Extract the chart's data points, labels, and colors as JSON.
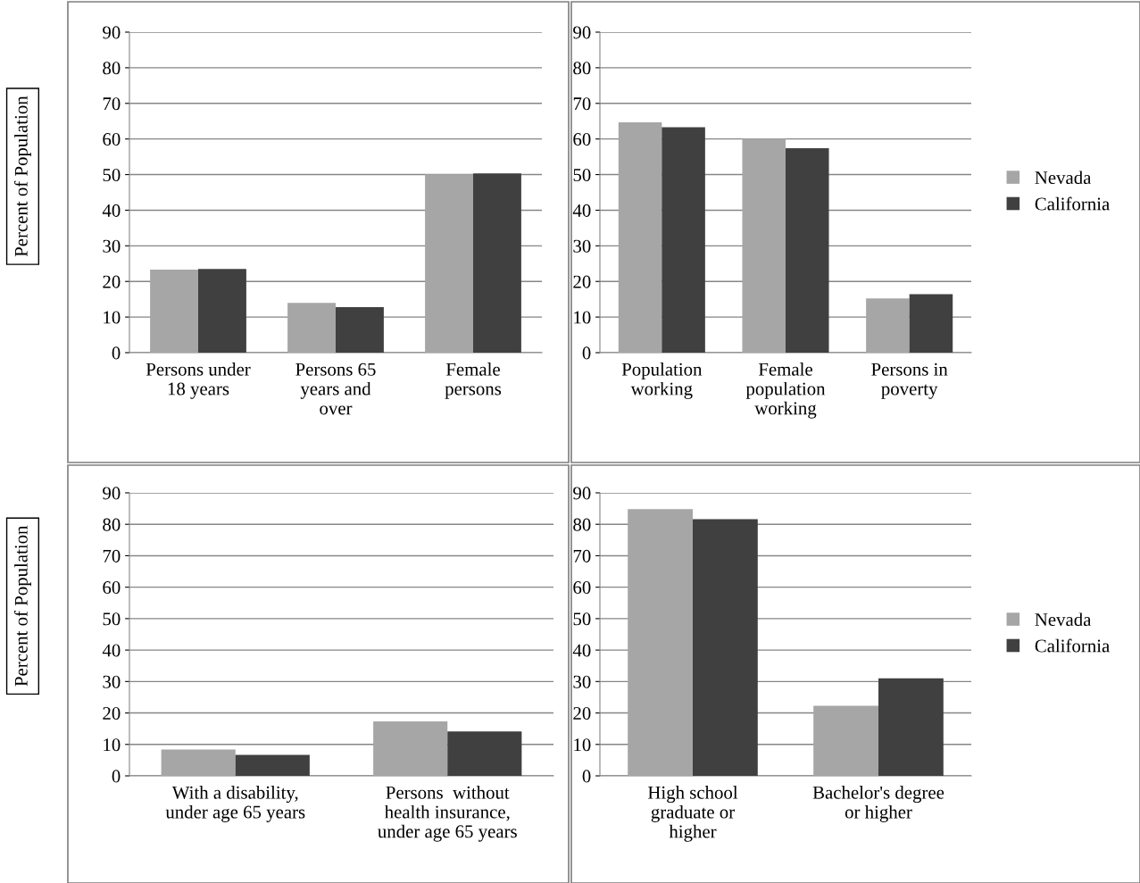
{
  "chart_data": [
    {
      "type": "bar",
      "ylabel": "Percent of Population",
      "categories": [
        "Persons under\n18 years",
        "Persons 65\nyears and\nover",
        "Female\npersons"
      ],
      "series": [
        {
          "color": "#a6a6a6",
          "values": [
            23.3,
            14.0,
            50.1
          ]
        },
        {
          "color": "#404040",
          "values": [
            23.5,
            12.8,
            50.3
          ]
        }
      ],
      "ylim": [
        0,
        90
      ],
      "yticks": [
        0,
        10,
        20,
        30,
        40,
        50,
        60,
        70,
        80,
        90
      ],
      "grid": "y",
      "legend": false
    },
    {
      "type": "bar",
      "categories": [
        "Population\nworking",
        "Female\npopulation\nworking",
        "Persons in\npoverty"
      ],
      "series": [
        {
          "name": "Nevada",
          "color": "#a6a6a6",
          "values": [
            64.7,
            60.1,
            15.2
          ]
        },
        {
          "name": "California",
          "color": "#404040",
          "values": [
            63.3,
            57.4,
            16.4
          ]
        }
      ],
      "ylim": [
        0,
        90
      ],
      "yticks": [
        0,
        10,
        20,
        30,
        40,
        50,
        60,
        70,
        80,
        90
      ],
      "grid": "y",
      "legend": "right"
    },
    {
      "type": "bar",
      "ylabel": "Percent of Population",
      "categories": [
        "With a disability,\nunder age 65 years",
        "Persons  without\nhealth insurance,\nunder age 65 years"
      ],
      "series": [
        {
          "color": "#a6a6a6",
          "values": [
            8.4,
            17.3
          ]
        },
        {
          "color": "#404040",
          "values": [
            6.7,
            14.1
          ]
        }
      ],
      "ylim": [
        0,
        90
      ],
      "yticks": [
        0,
        10,
        20,
        30,
        40,
        50,
        60,
        70,
        80,
        90
      ],
      "grid": "y",
      "legend": false
    },
    {
      "type": "bar",
      "categories": [
        "High school\ngraduate or\nhigher",
        "Bachelor's degree\nor higher"
      ],
      "series": [
        {
          "name": "Nevada",
          "color": "#a6a6a6",
          "values": [
            84.8,
            22.3
          ]
        },
        {
          "name": "California",
          "color": "#404040",
          "values": [
            81.6,
            31.0
          ]
        }
      ],
      "ylim": [
        0,
        90
      ],
      "yticks": [
        0,
        10,
        20,
        30,
        40,
        50,
        60,
        70,
        80,
        90
      ],
      "grid": "y",
      "legend": "right"
    }
  ]
}
